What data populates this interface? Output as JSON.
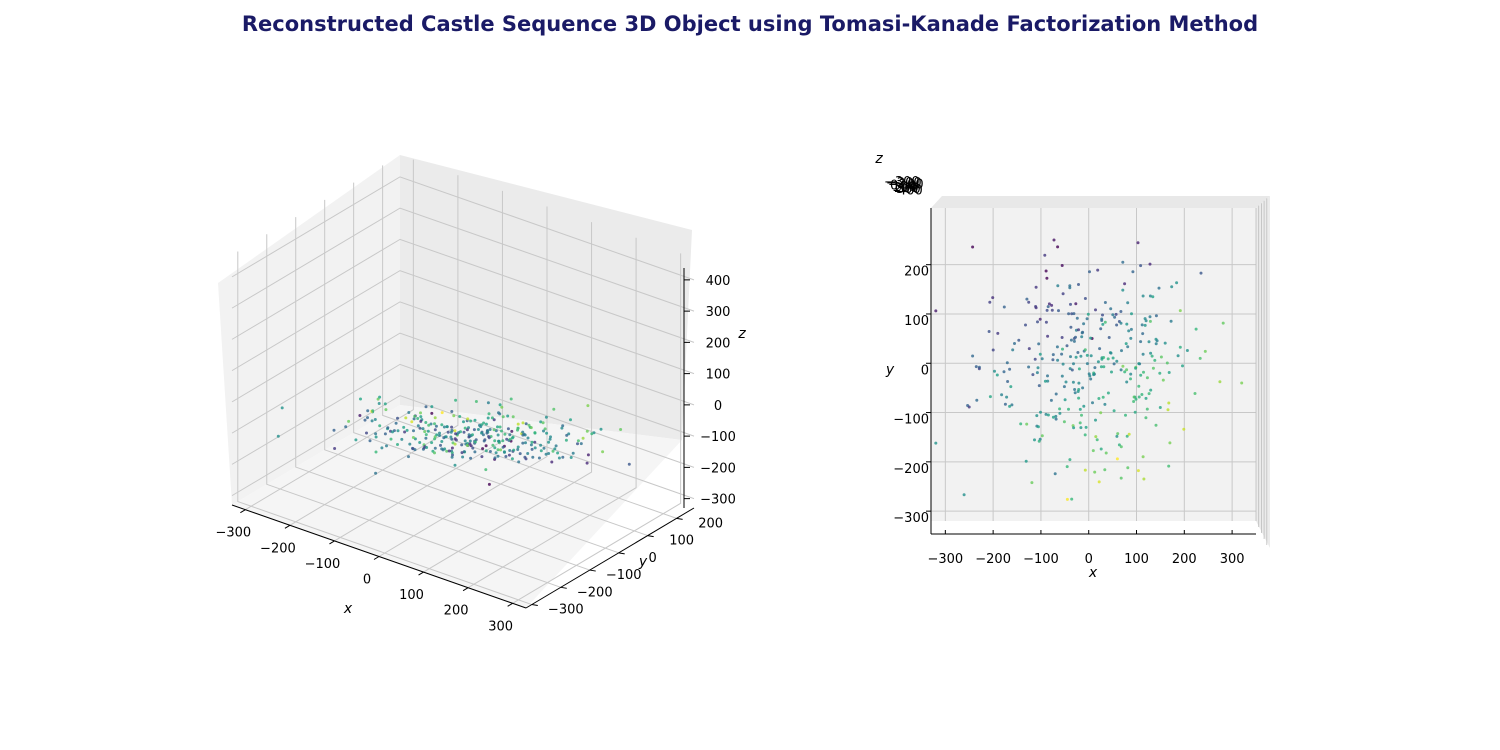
{
  "title": "Reconstructed Castle Sequence 3D Object using Tomasi-Kanade Factorization Method",
  "chart_data": [
    {
      "type": "scatter",
      "view": "perspective (elev 30, azim -60)",
      "xlabel": "x",
      "ylabel": "y",
      "zlabel": "z",
      "xlim": [
        -330,
        330
      ],
      "ylim": [
        -320,
        260
      ],
      "zlim": [
        -330,
        470
      ],
      "xticks": [
        "−300",
        "−200",
        "−100",
        "0",
        "100",
        "200",
        "300"
      ],
      "yticks": [
        "−300",
        "−200",
        "−100",
        "0",
        "100",
        "200"
      ],
      "zticks": [
        "−300",
        "−200",
        "−100",
        "0",
        "100",
        "200",
        "300",
        "400"
      ],
      "colormap": "viridis",
      "colormap_by": "z",
      "pane_color": "#f2f2f2",
      "grid": true,
      "point_count": 330
    },
    {
      "type": "scatter",
      "view": "top-down (elev 90, azim -90)",
      "xlabel": "x",
      "ylabel": "y",
      "zlabel": "z",
      "xlim": [
        -330,
        350
      ],
      "ylim": [
        -320,
        315
      ],
      "xticks": [
        "−300",
        "−200",
        "−100",
        "0",
        "100",
        "200",
        "300"
      ],
      "yticks": [
        "−300",
        "−200",
        "−100",
        "0",
        "100",
        "200"
      ],
      "zticks": [
        "−300",
        "−200",
        "−100",
        "0",
        "100",
        "200",
        "300",
        "400"
      ],
      "colormap": "viridis",
      "colormap_by": "z",
      "pane_color": "#f2f2f2",
      "grid": true,
      "point_count": 330
    }
  ]
}
